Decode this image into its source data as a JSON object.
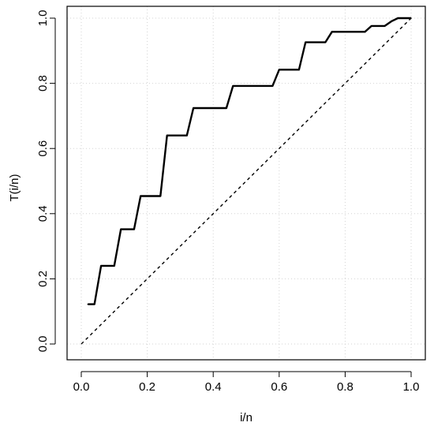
{
  "chart_data": {
    "type": "line",
    "xlabel": "i/n",
    "ylabel": "T(i/n)",
    "xlim": [
      0.0,
      1.0
    ],
    "ylim": [
      0.0,
      1.0
    ],
    "x_ticks": [
      "0.0",
      "0.2",
      "0.4",
      "0.6",
      "0.8",
      "1.0"
    ],
    "y_ticks": [
      "0.0",
      "0.2",
      "0.4",
      "0.6",
      "0.8",
      "1.0"
    ],
    "grid": true,
    "grid_style": "dotted",
    "series": [
      {
        "style": "solid",
        "x": [
          0.02,
          0.04,
          0.06,
          0.1,
          0.12,
          0.16,
          0.18,
          0.24,
          0.26,
          0.32,
          0.34,
          0.44,
          0.46,
          0.58,
          0.6,
          0.66,
          0.68,
          0.74,
          0.76,
          0.86,
          0.88,
          0.92,
          0.94,
          0.96,
          1.0
        ],
        "y": [
          0.122,
          0.122,
          0.24,
          0.24,
          0.352,
          0.352,
          0.454,
          0.454,
          0.64,
          0.64,
          0.724,
          0.724,
          0.792,
          0.792,
          0.842,
          0.842,
          0.926,
          0.926,
          0.958,
          0.958,
          0.976,
          0.976,
          0.99,
          1.0,
          1.0
        ]
      },
      {
        "style": "dashed",
        "x": [
          0.0,
          1.0
        ],
        "y": [
          0.0,
          1.0
        ]
      }
    ]
  }
}
